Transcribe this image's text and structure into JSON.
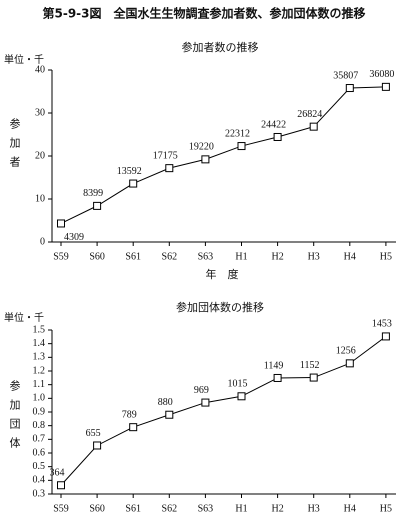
{
  "title": "第5-9-3図　全国水生生物調査参加者数、参加団体数の推移",
  "chart_data": [
    {
      "type": "line",
      "title": "参加者数の推移",
      "unit": "単位・千",
      "ylabel": "参加者",
      "xlabel": "年　度",
      "categories": [
        "S59",
        "S60",
        "S61",
        "S62",
        "S63",
        "H1",
        "H2",
        "H3",
        "H4",
        "H5"
      ],
      "values": [
        4.309,
        8.399,
        13.592,
        17.175,
        19.22,
        22.312,
        24.422,
        26.824,
        35.807,
        36.08
      ],
      "value_labels": [
        "4309",
        "8399",
        "13592",
        "17175",
        "19220",
        "22312",
        "24422",
        "26824",
        "35807",
        "36080"
      ],
      "color": "#000000",
      "ylim": [
        0,
        40
      ],
      "yticks": [
        0,
        10,
        20,
        30,
        40
      ]
    },
    {
      "type": "line",
      "title": "参加団体数の推移",
      "unit": "単位・千",
      "ylabel": "参加団体",
      "categories": [
        "S59",
        "S60",
        "S61",
        "S62",
        "S63",
        "H1",
        "H2",
        "H3",
        "H4",
        "H5"
      ],
      "values": [
        0.364,
        0.655,
        0.789,
        0.88,
        0.969,
        1.015,
        1.149,
        1.152,
        1.256,
        1.453
      ],
      "value_labels": [
        "364",
        "655",
        "789",
        "880",
        "969",
        "1015",
        "1149",
        "1152",
        "1256",
        "1453"
      ],
      "color": "#000000",
      "ylim": [
        0.3,
        1.5
      ],
      "yticks": [
        0.3,
        0.4,
        0.5,
        0.6,
        0.7,
        0.8,
        0.9,
        {
          "value": 1,
          "label": "1.0"
        },
        1.1,
        1.2,
        1.3,
        1.4,
        1.5
      ]
    }
  ]
}
